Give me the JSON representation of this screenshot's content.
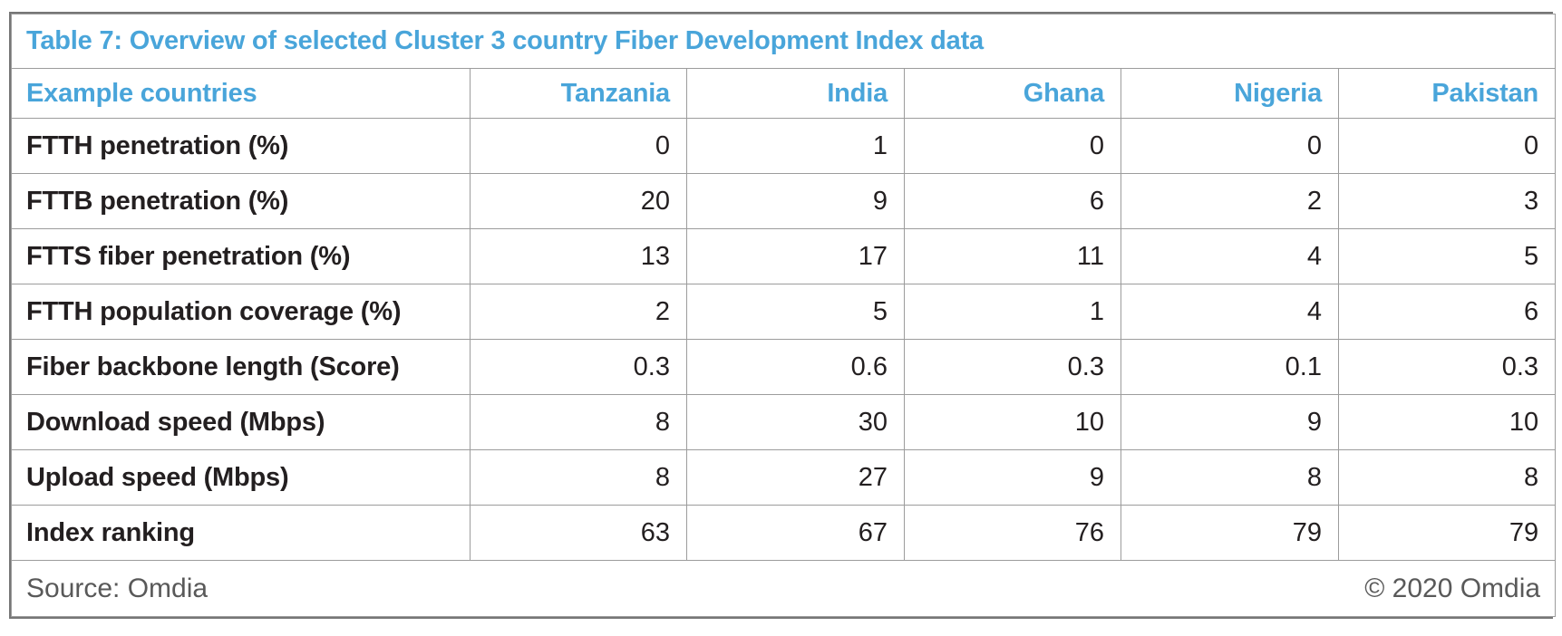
{
  "accent_color": "#49a5da",
  "text_color": "#231f20",
  "muted_color": "#595959",
  "table": {
    "title": "Table 7: Overview of selected Cluster 3 country Fiber Development Index data",
    "header": {
      "label": "Example countries",
      "countries": [
        "Tanzania",
        "India",
        "Ghana",
        "Nigeria",
        "Pakistan"
      ]
    },
    "rows": [
      {
        "label": "FTTH penetration (%)",
        "values": [
          "0",
          "1",
          "0",
          "0",
          "0"
        ]
      },
      {
        "label": "FTTB penetration (%)",
        "values": [
          "20",
          "9",
          "6",
          "2",
          "3"
        ]
      },
      {
        "label": "FTTS fiber penetration (%)",
        "values": [
          "13",
          "17",
          "11",
          "4",
          "5"
        ]
      },
      {
        "label": "FTTH population coverage (%)",
        "values": [
          "2",
          "5",
          "1",
          "4",
          "6"
        ]
      },
      {
        "label": "Fiber backbone length (Score)",
        "values": [
          "0.3",
          "0.6",
          "0.3",
          "0.1",
          "0.3"
        ]
      },
      {
        "label": "Download speed (Mbps)",
        "values": [
          "8",
          "30",
          "10",
          "9",
          "10"
        ]
      },
      {
        "label": "Upload speed (Mbps)",
        "values": [
          "8",
          "27",
          "9",
          "8",
          "8"
        ]
      },
      {
        "label": "Index ranking",
        "values": [
          "63",
          "67",
          "76",
          "79",
          "79"
        ]
      }
    ]
  },
  "footer": {
    "source": "Source: Omdia",
    "copyright": "© 2020 Omdia"
  }
}
